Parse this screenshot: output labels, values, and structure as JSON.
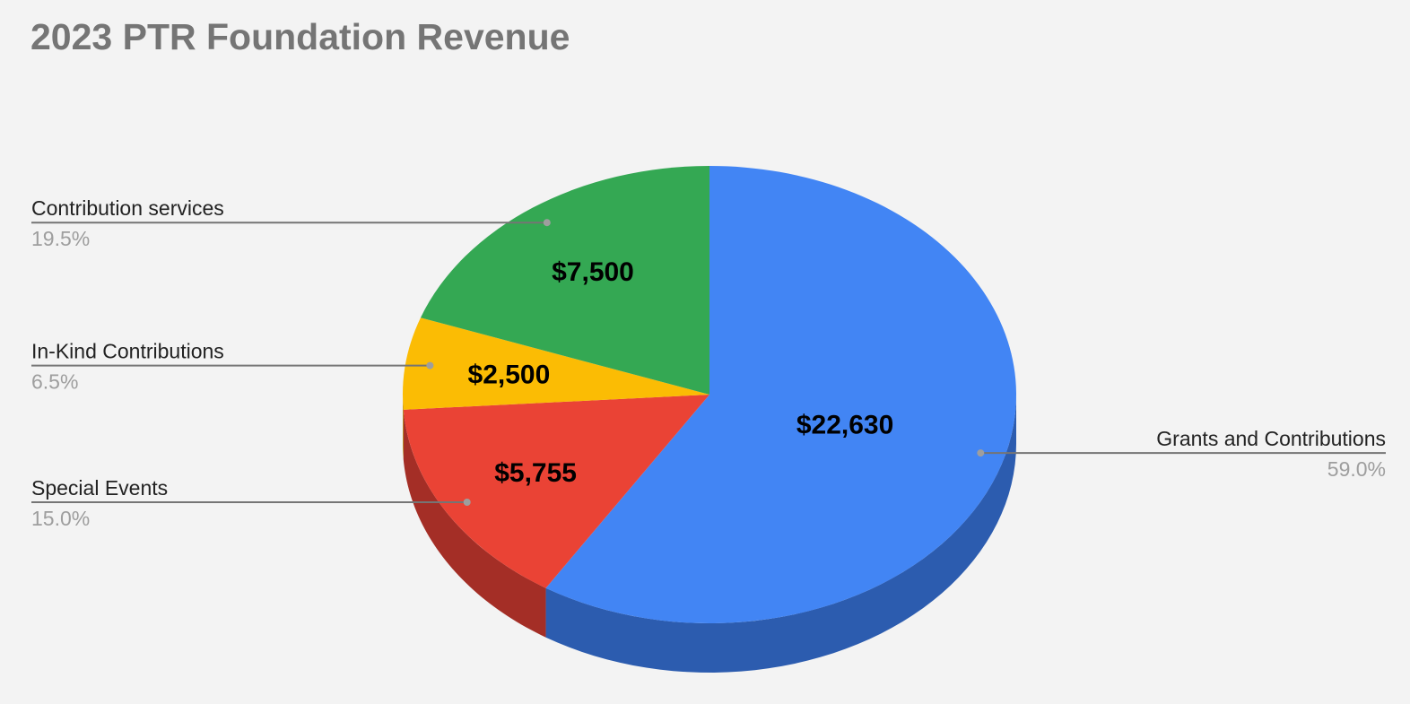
{
  "chart_data": {
    "type": "pie",
    "style": "3d",
    "title": "2023 PTR Foundation Revenue",
    "slices": [
      {
        "label": "Grants and Contributions",
        "value": 22630,
        "value_label": "$22,630",
        "percent_label": "59.0%",
        "color": "#4285f4",
        "side_color": "#2c5caf"
      },
      {
        "label": "Special Events",
        "value": 5755,
        "value_label": "$5,755",
        "percent_label": "15.0%",
        "color": "#ea4335",
        "side_color": "#a42e26"
      },
      {
        "label": "In-Kind Contributions",
        "value": 2500,
        "value_label": "$2,500",
        "percent_label": "6.5%",
        "color": "#fbbc04",
        "side_color": "#b08403"
      },
      {
        "label": "Contribution services",
        "value": 7500,
        "value_label": "$7,500",
        "percent_label": "19.5%",
        "color": "#34a853",
        "side_color": "#247539"
      }
    ]
  }
}
